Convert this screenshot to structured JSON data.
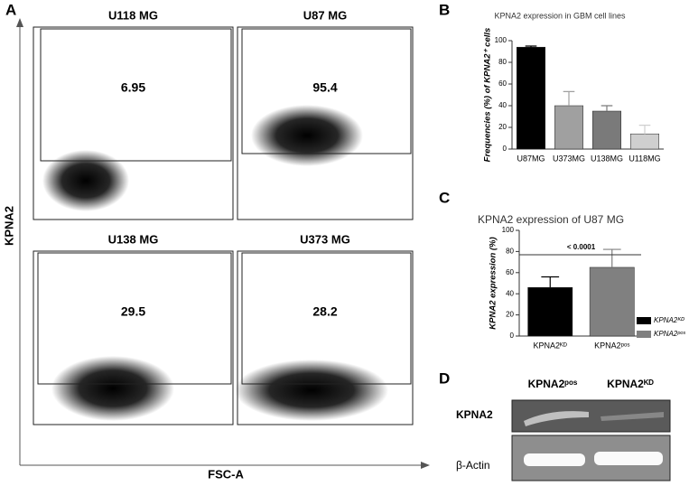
{
  "flow": {
    "label": "A",
    "y_label": "KPNA2",
    "x_label": "FSC-A",
    "plots": [
      {
        "title": "U118 MG",
        "gate_value": 6.95
      },
      {
        "title": "U87 MG",
        "gate_value": 95.4
      },
      {
        "title": "U138 MG",
        "gate_value": 29.5
      },
      {
        "title": "U373 MG",
        "gate_value": 28.2
      }
    ]
  },
  "chart_data": [
    {
      "type": "bar",
      "label": "B",
      "title": "KPNA2 expression in  GBM cell lines",
      "ylabel": "Frequencies (%) of KPNA2⁺ cells",
      "categories": [
        "U87MG",
        "U373MG",
        "U138MG",
        "U118MG"
      ],
      "values": [
        94,
        40,
        35,
        14
      ],
      "errors": [
        1,
        13,
        5,
        8
      ],
      "colors": [
        "#000000",
        "#a0a0a0",
        "#7a7a7a",
        "#cfcfcf"
      ],
      "ylim": [
        0,
        100
      ],
      "yticks": [
        0,
        20,
        40,
        60,
        80,
        100
      ]
    },
    {
      "type": "bar",
      "label": "C",
      "title": "KPNA2 expression of U87 MG",
      "ylabel": "KPNA2 expression (%)",
      "categories": [
        "KPNA2ᴷᴰ",
        "KPNA2ᵖᵒˢ"
      ],
      "values": [
        46,
        65
      ],
      "errors": [
        10,
        17
      ],
      "colors": [
        "#000000",
        "#808080"
      ],
      "ylim": [
        0,
        100
      ],
      "yticks": [
        0,
        20,
        40,
        60,
        80,
        100
      ],
      "annotation": "< 0.0001",
      "legend": true
    }
  ],
  "blot": {
    "label": "D",
    "columns": [
      "KPNA2ᵖᵒˢ",
      "KPNA2ᴷᴰ"
    ],
    "rows": [
      "KPNA2",
      "β-Actin"
    ]
  }
}
